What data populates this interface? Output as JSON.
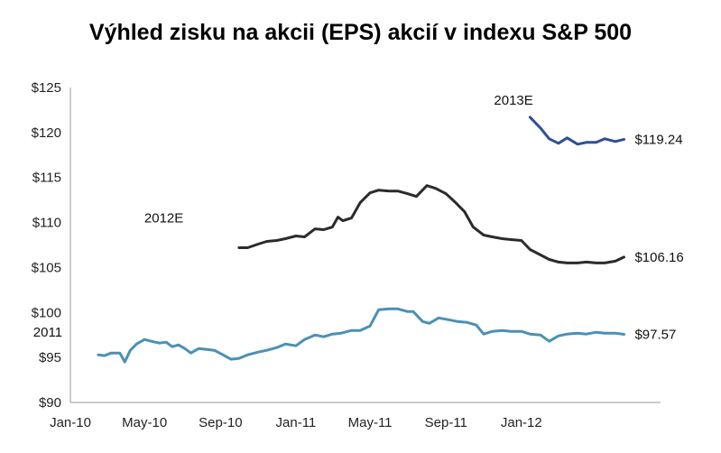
{
  "chart_data": {
    "type": "line",
    "title": "Výhled zisku na akcii (EPS) akcií v indexu S&P 500",
    "xlabel": "",
    "ylabel": "",
    "ylim": [
      90,
      125
    ],
    "yticks": [
      "$90",
      "$95",
      "$100",
      "$105",
      "$110",
      "$115",
      "$120",
      "$125"
    ],
    "y_tick_values": [
      90,
      95,
      100,
      105,
      110,
      115,
      120,
      125
    ],
    "xticks": [
      "Jan-10",
      "May-10",
      "Sep-10",
      "Jan-11",
      "May-11",
      "Sep-11",
      "Jan-12"
    ],
    "x_tick_values": [
      "2010-01-01",
      "2010-05-01",
      "2010-09-01",
      "2011-01-01",
      "2011-05-01",
      "2011-09-01",
      "2012-01-01"
    ],
    "xlim": [
      "2010-01-01",
      "2012-07-15"
    ],
    "grid": false,
    "series": [
      {
        "name": "2011",
        "color": "#4a90b8",
        "end_label": "$97.57",
        "x": [
          "2010-02-15",
          "2010-02-25",
          "2010-03-08",
          "2010-03-22",
          "2010-03-30",
          "2010-04-08",
          "2010-04-18",
          "2010-05-01",
          "2010-05-12",
          "2010-05-25",
          "2010-06-05",
          "2010-06-15",
          "2010-06-25",
          "2010-07-05",
          "2010-07-15",
          "2010-07-28",
          "2010-08-10",
          "2010-08-22",
          "2010-09-05",
          "2010-09-18",
          "2010-10-01",
          "2010-10-15",
          "2010-11-01",
          "2010-11-15",
          "2010-12-01",
          "2010-12-15",
          "2011-01-01",
          "2011-01-15",
          "2011-02-01",
          "2011-02-15",
          "2011-03-01",
          "2011-03-15",
          "2011-04-01",
          "2011-04-15",
          "2011-05-01",
          "2011-05-15",
          "2011-06-01",
          "2011-06-15",
          "2011-07-01",
          "2011-07-10",
          "2011-07-25",
          "2011-08-05",
          "2011-08-20",
          "2011-09-05",
          "2011-09-20",
          "2011-10-05",
          "2011-10-20",
          "2011-11-01",
          "2011-11-15",
          "2011-12-01",
          "2011-12-15",
          "2012-01-01",
          "2012-01-15",
          "2012-02-01",
          "2012-02-15",
          "2012-03-01",
          "2012-03-15",
          "2012-04-01",
          "2012-04-15",
          "2012-05-01",
          "2012-05-15",
          "2012-06-01",
          "2012-06-15"
        ],
        "values": [
          95.3,
          95.2,
          95.5,
          95.5,
          94.5,
          95.8,
          96.5,
          97.0,
          96.8,
          96.6,
          96.7,
          96.2,
          96.4,
          96.0,
          95.5,
          96.0,
          95.9,
          95.8,
          95.3,
          94.8,
          94.9,
          95.3,
          95.6,
          95.8,
          96.1,
          96.5,
          96.3,
          97.0,
          97.5,
          97.3,
          97.6,
          97.7,
          98.0,
          98.0,
          98.5,
          100.3,
          100.4,
          100.4,
          100.1,
          100.1,
          99.0,
          98.8,
          99.4,
          99.2,
          99.0,
          98.9,
          98.6,
          97.6,
          97.9,
          98.0,
          97.9,
          97.9,
          97.6,
          97.5,
          96.8,
          97.4,
          97.6,
          97.7,
          97.6,
          97.8,
          97.7,
          97.7,
          97.57
        ]
      },
      {
        "name": "2012E",
        "color": "#2b2b2b",
        "end_label": "$106.16",
        "x": [
          "2010-10-01",
          "2010-10-15",
          "2010-11-01",
          "2010-11-15",
          "2010-12-01",
          "2010-12-15",
          "2011-01-01",
          "2011-01-15",
          "2011-02-01",
          "2011-02-15",
          "2011-03-01",
          "2011-03-10",
          "2011-03-18",
          "2011-04-01",
          "2011-04-15",
          "2011-05-01",
          "2011-05-15",
          "2011-06-01",
          "2011-06-15",
          "2011-07-01",
          "2011-07-15",
          "2011-08-01",
          "2011-08-15",
          "2011-09-01",
          "2011-09-15",
          "2011-10-01",
          "2011-10-15",
          "2011-11-01",
          "2011-11-15",
          "2011-12-01",
          "2011-12-15",
          "2012-01-01",
          "2012-01-15",
          "2012-02-01",
          "2012-02-15",
          "2012-03-01",
          "2012-03-15",
          "2012-04-01",
          "2012-04-15",
          "2012-05-01",
          "2012-05-15",
          "2012-06-01",
          "2012-06-15"
        ],
        "values": [
          107.2,
          107.2,
          107.6,
          107.9,
          108.0,
          108.2,
          108.5,
          108.4,
          109.3,
          109.2,
          109.5,
          110.6,
          110.2,
          110.5,
          112.2,
          113.3,
          113.6,
          113.5,
          113.5,
          113.2,
          112.9,
          114.1,
          113.8,
          113.2,
          112.3,
          111.2,
          109.5,
          108.6,
          108.4,
          108.2,
          108.1,
          108.0,
          107.0,
          106.4,
          105.9,
          105.6,
          105.5,
          105.5,
          105.6,
          105.5,
          105.5,
          105.7,
          106.16
        ]
      },
      {
        "name": "2013E",
        "color": "#2f4f97",
        "end_label": "$119.24",
        "x": [
          "2012-01-15",
          "2012-02-01",
          "2012-02-15",
          "2012-03-01",
          "2012-03-15",
          "2012-04-01",
          "2012-04-15",
          "2012-05-01",
          "2012-05-15",
          "2012-06-01",
          "2012-06-15"
        ],
        "values": [
          121.7,
          120.5,
          119.3,
          118.8,
          119.4,
          118.7,
          118.9,
          118.9,
          119.3,
          119.0,
          119.24
        ]
      }
    ]
  }
}
